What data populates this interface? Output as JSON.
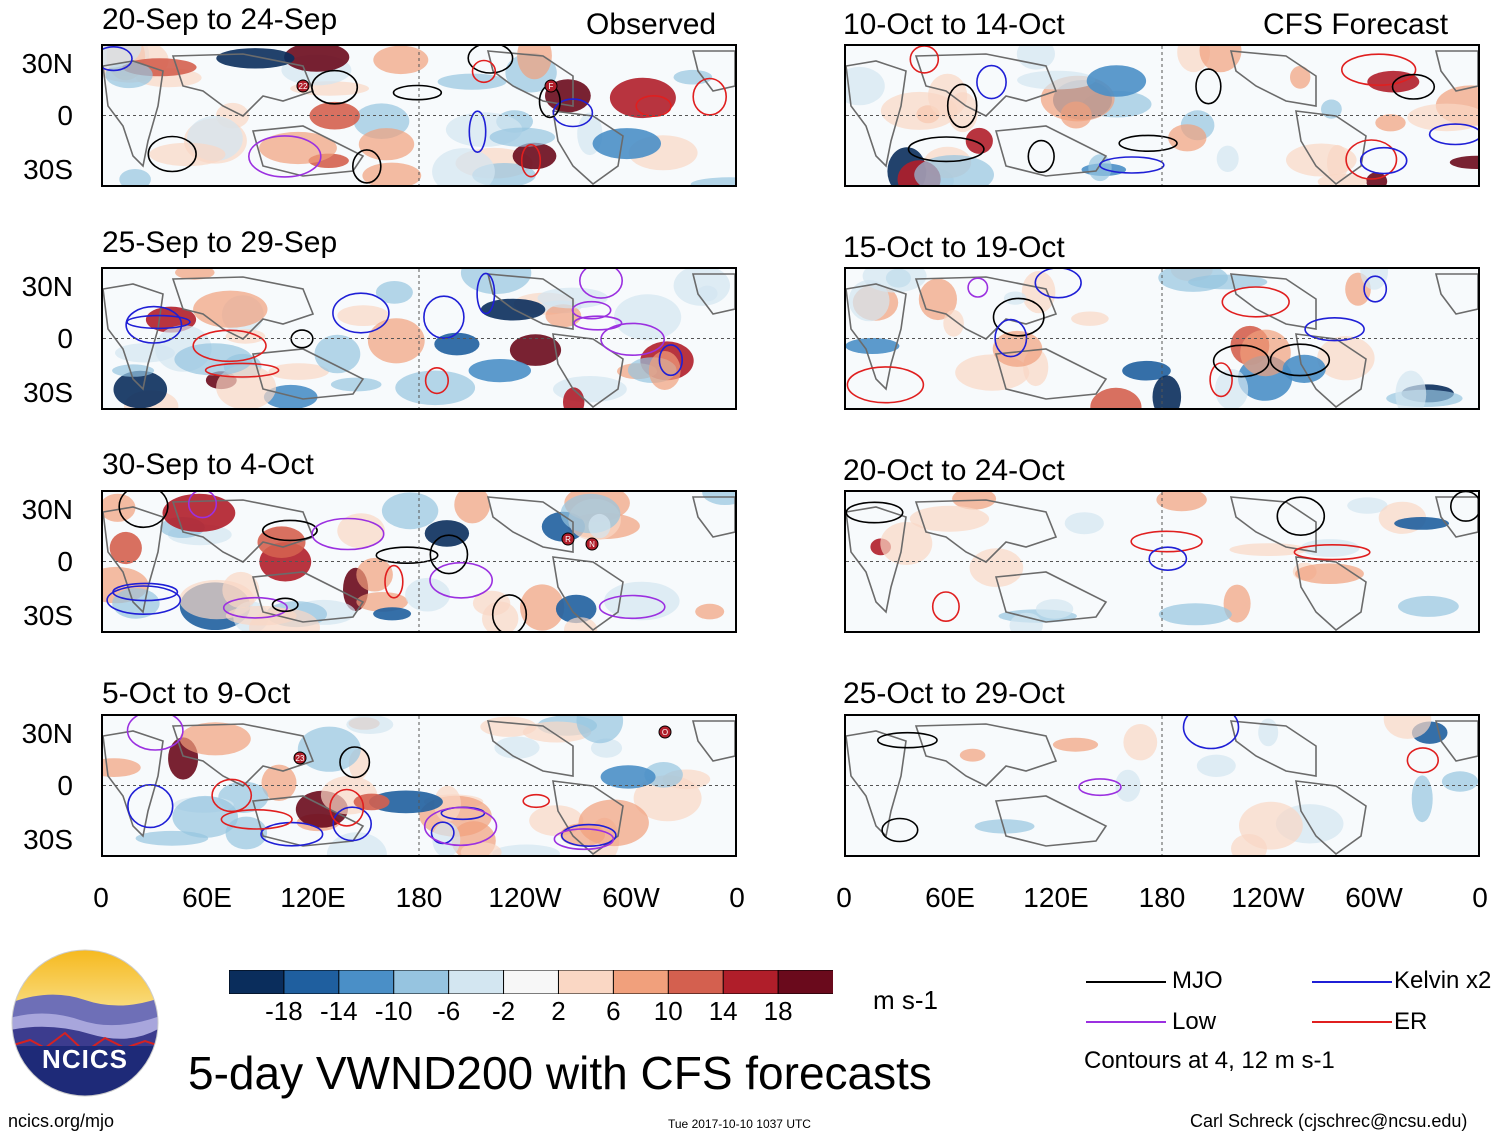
{
  "columns": {
    "left_label": "Observed",
    "right_label": "CFS Forecast"
  },
  "panels_left": [
    {
      "title": "20-Sep to 24-Sep"
    },
    {
      "title": "25-Sep to 29-Sep"
    },
    {
      "title": "30-Sep to 4-Oct"
    },
    {
      "title": "5-Oct to 9-Oct"
    }
  ],
  "panels_right": [
    {
      "title": "10-Oct to 14-Oct"
    },
    {
      "title": "15-Oct to 19-Oct"
    },
    {
      "title": "20-Oct to 24-Oct"
    },
    {
      "title": "25-Oct to 29-Oct"
    }
  ],
  "lat_labels": [
    "30N",
    "0",
    "30S"
  ],
  "lon_labels": [
    "0",
    "60E",
    "120E",
    "180",
    "120W",
    "60W",
    "0"
  ],
  "colorbar": {
    "colors": [
      "#0a2d5c",
      "#1f5f9f",
      "#4a8fc7",
      "#96c4e0",
      "#d3e6f1",
      "#f7f7f7",
      "#fad7c4",
      "#f1a07c",
      "#d4604f",
      "#b01e2a",
      "#6a0a1c"
    ],
    "labels": [
      "-18",
      "-14",
      "-10",
      "-6",
      "-2",
      "2",
      "6",
      "10",
      "14",
      "18"
    ],
    "unit": "m s-1"
  },
  "legend": {
    "mjo": {
      "label": "MJO",
      "color": "#000000"
    },
    "kelvin": {
      "label": "Kelvin x2",
      "color": "#1f1fd6"
    },
    "low": {
      "label": "Low",
      "color": "#9b30e0"
    },
    "er": {
      "label": "ER",
      "color": "#e01f1f"
    },
    "note": "Contours at 4, 12 m s-1"
  },
  "logo": {
    "text": "NCICS"
  },
  "main_title": "5-day VWND200 with CFS forecasts",
  "footer": {
    "site": "ncics.org/mjo",
    "timestamp": "Tue 2017-10-10 1037 UTC",
    "author": "Carl Schreck (cjschrec@ncsu.edu)"
  },
  "storm_markers": [
    {
      "panel": "left-1",
      "text": "22"
    },
    {
      "panel": "left-1",
      "text": "F"
    },
    {
      "panel": "left-3",
      "text": "R"
    },
    {
      "panel": "left-3",
      "text": "N"
    },
    {
      "panel": "left-4",
      "text": "23"
    },
    {
      "panel": "left-4",
      "text": "O"
    }
  ]
}
